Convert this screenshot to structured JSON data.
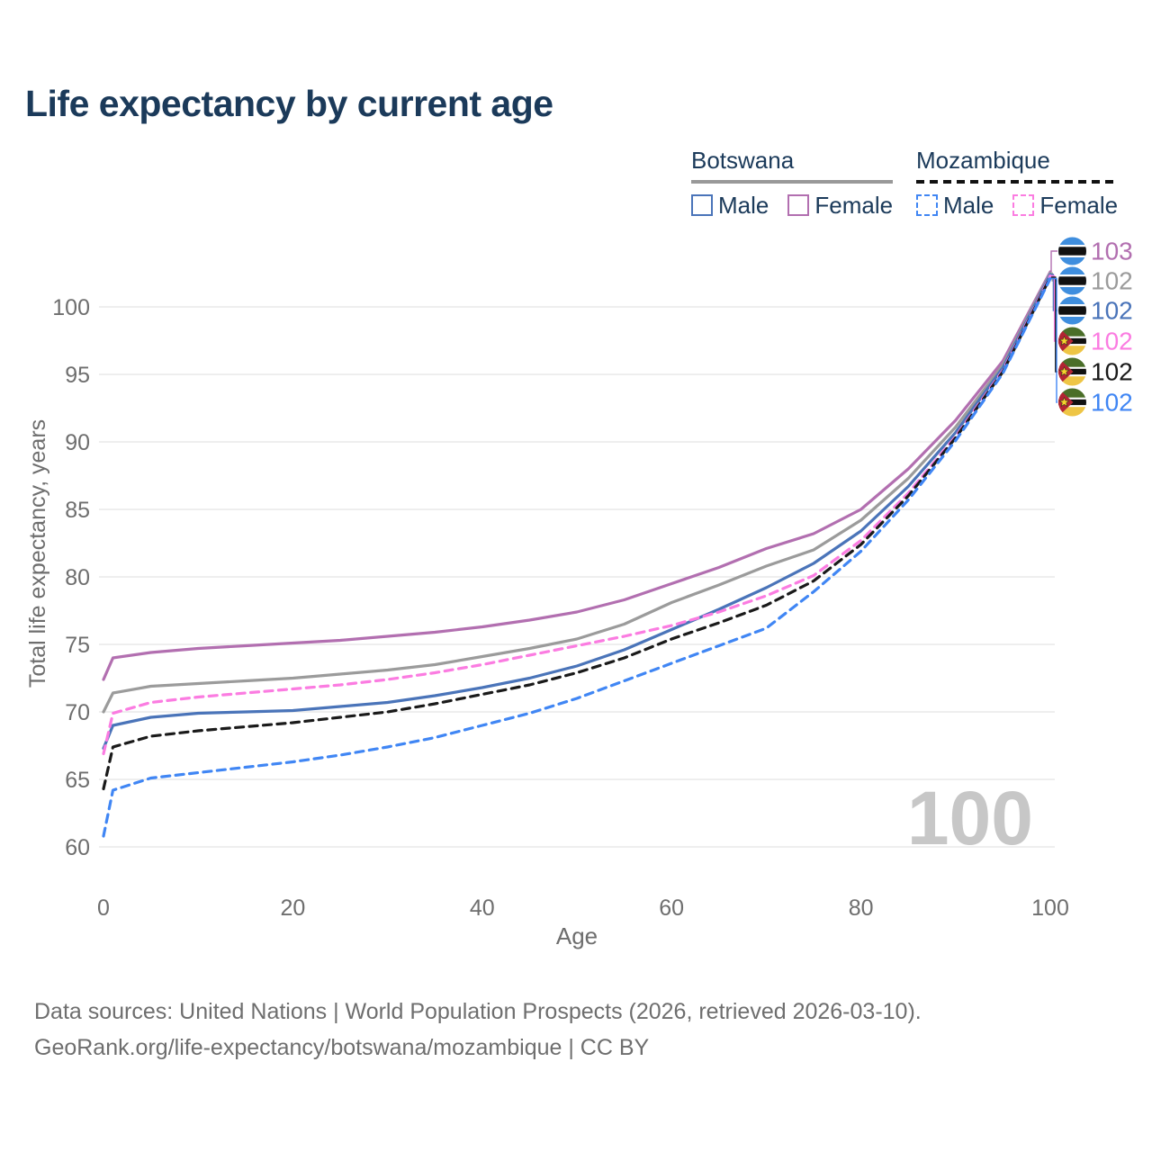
{
  "title": "Life expectancy by current age",
  "watermark": "100",
  "legend": {
    "groups": [
      {
        "name": "Botswana",
        "line_style": "solid",
        "rule_color": "#999999",
        "items": [
          {
            "label": "Male",
            "color": "#4a74b9",
            "dash": false
          },
          {
            "label": "Female",
            "color": "#b26fb0",
            "dash": false
          }
        ]
      },
      {
        "name": "Mozambique",
        "line_style": "dashed",
        "rule_color": "#111111",
        "items": [
          {
            "label": "Male",
            "color": "#4086f4",
            "dash": true
          },
          {
            "label": "Female",
            "color": "#fb7ce1",
            "dash": true
          }
        ]
      }
    ]
  },
  "footer": {
    "line1": "Data sources: United Nations | World Population Prospects (2026, retrieved 2026-03-10).",
    "line2": "GeoRank.org/life-expectancy/botswana/mozambique | CC BY"
  },
  "colors": {
    "title": "#1b3a5a",
    "axis_text": "#6e6e6e",
    "gridline": "#e8e8e8",
    "watermark": "#c7c7c7",
    "botswana_male": "#4a74b9",
    "botswana_female": "#b26fb0",
    "botswana_all": "#9b9b9b",
    "mozambique_male": "#4086f4",
    "mozambique_female": "#fb7ce1",
    "mozambique_all": "#1a1a1a"
  },
  "chart_data": {
    "type": "line",
    "title": "Life expectancy by current age",
    "xlabel": "Age",
    "ylabel": "Total life expectancy, years",
    "x_ticks": [
      0,
      20,
      40,
      60,
      80,
      100
    ],
    "y_ticks": [
      60,
      65,
      70,
      75,
      80,
      85,
      90,
      95,
      100
    ],
    "xlim": [
      0,
      100
    ],
    "ylim": [
      60,
      103
    ],
    "grid": "horizontal-only",
    "legend_position": "top-right",
    "x": [
      0,
      1,
      5,
      10,
      15,
      20,
      25,
      30,
      35,
      40,
      45,
      50,
      55,
      60,
      65,
      70,
      75,
      80,
      85,
      90,
      95,
      100
    ],
    "series": [
      {
        "name": "Botswana Female",
        "country": "Botswana",
        "sex": "female",
        "style": "solid",
        "color": "#b26fb0",
        "flag": "botswana",
        "end_label": "103",
        "values": [
          72.4,
          74.0,
          74.4,
          74.7,
          74.9,
          75.1,
          75.3,
          75.6,
          75.9,
          76.3,
          76.8,
          77.4,
          78.3,
          79.5,
          80.7,
          82.1,
          83.2,
          85.0,
          88.0,
          91.6,
          96.0,
          102.6
        ]
      },
      {
        "name": "Botswana (both sexes)",
        "country": "Botswana",
        "sex": "all",
        "style": "solid",
        "color": "#9b9b9b",
        "flag": "botswana",
        "end_label": "102",
        "values": [
          70.0,
          71.4,
          71.9,
          72.1,
          72.3,
          72.5,
          72.8,
          73.1,
          73.5,
          74.1,
          74.7,
          75.4,
          76.5,
          78.1,
          79.4,
          80.8,
          82.0,
          84.2,
          87.3,
          91.1,
          95.7,
          102.5
        ]
      },
      {
        "name": "Botswana Male",
        "country": "Botswana",
        "sex": "male",
        "style": "solid",
        "color": "#4a74b9",
        "flag": "botswana",
        "end_label": "102",
        "values": [
          67.3,
          69.0,
          69.6,
          69.9,
          70.0,
          70.1,
          70.4,
          70.7,
          71.2,
          71.8,
          72.5,
          73.4,
          74.6,
          76.1,
          77.6,
          79.2,
          81.0,
          83.4,
          86.7,
          90.7,
          95.5,
          102.4
        ]
      },
      {
        "name": "Mozambique Female",
        "country": "Mozambique",
        "sex": "female",
        "style": "dashed",
        "color": "#fb7ce1",
        "flag": "mozambique",
        "end_label": "102",
        "values": [
          66.9,
          69.9,
          70.7,
          71.1,
          71.4,
          71.7,
          72.0,
          72.4,
          72.9,
          73.5,
          74.2,
          74.9,
          75.6,
          76.4,
          77.4,
          78.6,
          80.1,
          82.7,
          86.2,
          90.4,
          95.3,
          102.3
        ]
      },
      {
        "name": "Mozambique (both sexes)",
        "country": "Mozambique",
        "sex": "all",
        "style": "dashed",
        "color": "#1a1a1a",
        "flag": "mozambique",
        "end_label": "102",
        "values": [
          64.3,
          67.4,
          68.2,
          68.6,
          68.9,
          69.2,
          69.6,
          70.0,
          70.6,
          71.3,
          72.0,
          72.9,
          74.0,
          75.4,
          76.6,
          77.9,
          79.7,
          82.4,
          86.0,
          90.3,
          95.2,
          102.2
        ]
      },
      {
        "name": "Mozambique Male",
        "country": "Mozambique",
        "sex": "male",
        "style": "dashed",
        "color": "#4086f4",
        "flag": "mozambique",
        "end_label": "102",
        "values": [
          60.8,
          64.2,
          65.1,
          65.5,
          65.9,
          66.3,
          66.8,
          67.4,
          68.1,
          69.0,
          69.9,
          71.0,
          72.3,
          73.6,
          74.9,
          76.2,
          78.9,
          81.9,
          85.7,
          90.1,
          95.1,
          102.1
        ]
      }
    ]
  }
}
